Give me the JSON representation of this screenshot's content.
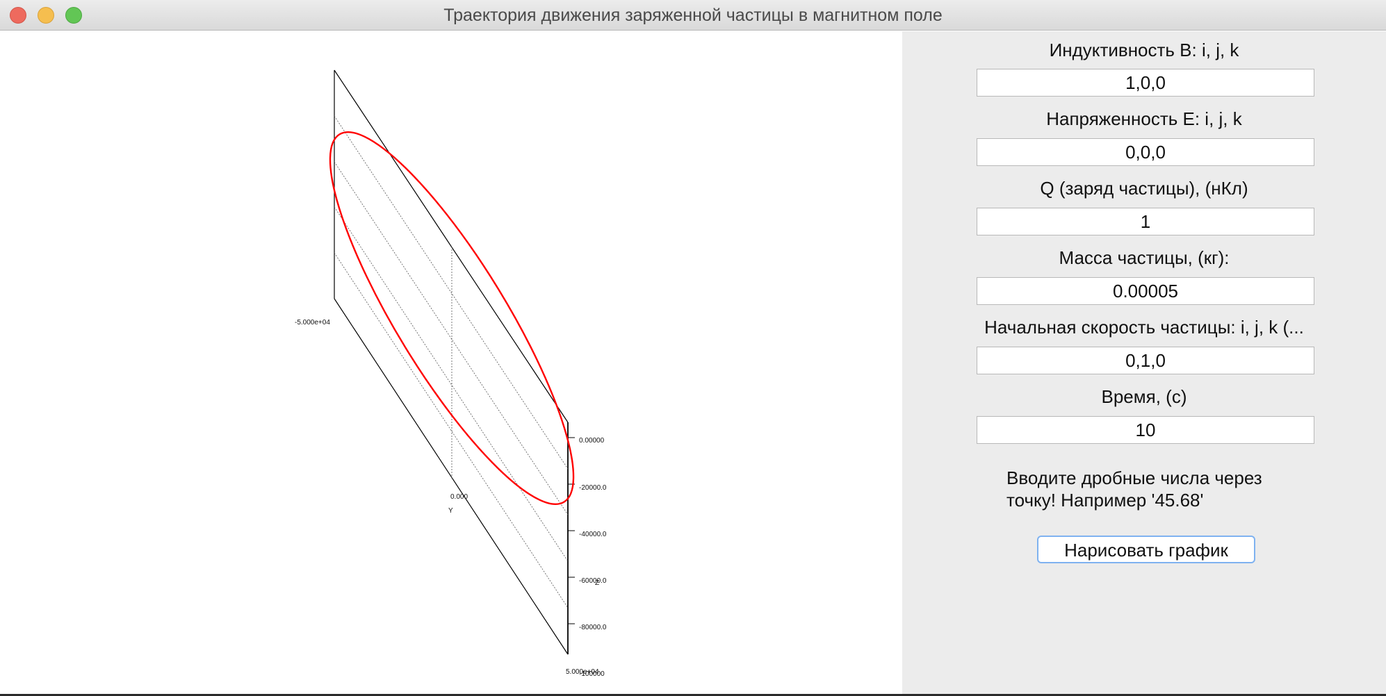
{
  "window": {
    "title": "Траектория движения заряженной частицы в магнитном поле"
  },
  "form": {
    "induction_label": "Индуктивность B: i, j, k",
    "induction_value": "1,0,0",
    "tension_label": "Напряженность E: i, j, k",
    "tension_value": "0,0,0",
    "charge_label": "Q (заряд частицы), (нКл)",
    "charge_value": "1",
    "mass_label": "Масса частицы, (кг):",
    "mass_value": "0.00005",
    "velocity_label": "Начальная скорость частицы: i, j, k (...",
    "velocity_value": "0,1,0",
    "time_label": "Время, (с)",
    "time_value": "10",
    "note_line1": "Вводите дробные числа через",
    "note_line2": "точку! Например '45.68'",
    "draw_button": "Нарисовать график"
  },
  "plot": {
    "y_axis_label": "Y",
    "z_axis_label": "Z",
    "y_ticks": [
      "-5.000e+04",
      "0.000",
      "5.000e+04"
    ],
    "z_ticks": [
      "0.00000",
      "-20000.0",
      "-40000.0",
      "-60000.0",
      "-80000.0",
      "-100000"
    ],
    "curve_color": "#ff0000",
    "grid_color": "#000000"
  }
}
